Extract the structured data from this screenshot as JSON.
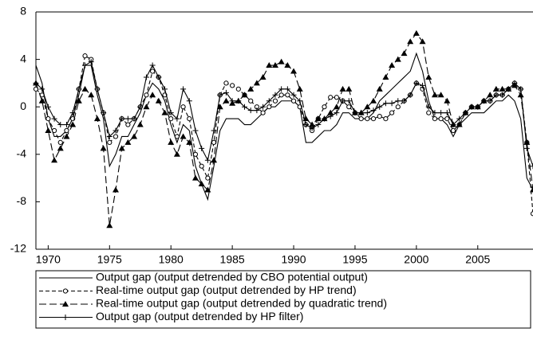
{
  "chart_data": {
    "type": "line",
    "x": [
      1969,
      1969.5,
      1970,
      1970.5,
      1971,
      1971.5,
      1972,
      1972.5,
      1973,
      1973.5,
      1974,
      1974.5,
      1975,
      1975.5,
      1976,
      1976.5,
      1977,
      1977.5,
      1978,
      1978.5,
      1979,
      1979.5,
      1980,
      1980.5,
      1981,
      1981.5,
      1982,
      1982.5,
      1983,
      1983.5,
      1984,
      1984.5,
      1985,
      1985.5,
      1986,
      1986.5,
      1987,
      1987.5,
      1988,
      1988.5,
      1989,
      1989.5,
      1990,
      1990.5,
      1991,
      1991.5,
      1992,
      1992.5,
      1993,
      1993.5,
      1994,
      1994.5,
      1995,
      1995.5,
      1996,
      1996.5,
      1997,
      1997.5,
      1998,
      1998.5,
      1999,
      1999.5,
      2000,
      2000.5,
      2001,
      2001.5,
      2002,
      2002.5,
      2003,
      2003.5,
      2004,
      2004.5,
      2005,
      2005.5,
      2006,
      2006.5,
      2007,
      2007.5,
      2008,
      2008.5,
      2009,
      2009.5
    ],
    "series": [
      {
        "name": "Output gap (output detrended by CBO potential output)",
        "color": "#000000",
        "line_style": "solid",
        "marker": "none",
        "values": [
          3.5,
          2,
          -1,
          -2.5,
          -2.5,
          -2,
          -1,
          1,
          3.5,
          3.5,
          1,
          -1,
          -5,
          -4,
          -2.5,
          -2.5,
          -1.5,
          -0.5,
          1,
          2,
          1.5,
          0.5,
          -1.5,
          -3,
          -1.5,
          -2,
          -5,
          -6.5,
          -7.8,
          -5,
          -2,
          -1,
          -1,
          -1,
          -1.5,
          -1.5,
          -1,
          -0.5,
          0,
          0,
          0.5,
          0.5,
          0.5,
          0,
          -3,
          -3,
          -2.5,
          -2,
          -2,
          -1.5,
          -0.5,
          -0.5,
          -1,
          -1,
          -1,
          -0.5,
          0.5,
          1,
          1.5,
          2,
          2.5,
          3,
          4.5,
          3,
          0.5,
          -1,
          -1,
          -1.5,
          -2.5,
          -1.5,
          -1,
          -0.5,
          -0.5,
          -0.5,
          0,
          0.5,
          0.5,
          1,
          0.5,
          -1,
          -6,
          -7
        ]
      },
      {
        "name": "Real-time output gap (output detrended by HP trend)",
        "color": "#000000",
        "line_style": "dashed",
        "marker": "circle",
        "values": [
          1.5,
          1,
          -1,
          -2,
          -3,
          -2,
          -1,
          1.5,
          4.3,
          4,
          1.5,
          -0.5,
          -3,
          -2.5,
          -1,
          -1.5,
          -1,
          0,
          1,
          3,
          2.5,
          1,
          -1,
          -2.5,
          0,
          -1,
          -4,
          -5,
          -6,
          -3,
          1,
          2,
          1.8,
          1.5,
          1,
          0.5,
          0,
          -0.5,
          0,
          0.5,
          1,
          1,
          0.5,
          0,
          -1.5,
          -2,
          -1,
          0,
          0.8,
          0.8,
          0.5,
          0,
          -0.5,
          -1,
          -1,
          -1,
          -0.8,
          -1,
          -0.5,
          0,
          0.5,
          1,
          2,
          1.5,
          -0.5,
          -1,
          -1,
          -1,
          -2,
          -1.5,
          -0.5,
          0,
          0,
          0.5,
          0.5,
          1,
          1,
          1.5,
          2,
          1.5,
          -3,
          -9
        ]
      },
      {
        "name": "Real-time output gap (output detrended by quadratic trend)",
        "color": "#000000",
        "line_style": "longdash",
        "marker": "triangle",
        "values": [
          2,
          0.5,
          -2,
          -4.5,
          -3.5,
          -2.5,
          -1.5,
          0.5,
          1.5,
          1,
          -1,
          -3.5,
          -10,
          -7,
          -3.5,
          -3,
          -2.5,
          -1.5,
          0,
          1,
          0.5,
          -0.5,
          -3,
          -4,
          -2.5,
          -3,
          -6,
          -6.5,
          -7,
          -4.5,
          0,
          0.5,
          0.3,
          0.5,
          1,
          1.5,
          2,
          2.5,
          3.5,
          3.5,
          3.8,
          3.5,
          3,
          1.5,
          -1,
          -1.5,
          -1,
          -1,
          -0.5,
          0,
          1.5,
          1.5,
          -0.5,
          -0.5,
          0,
          0.5,
          1.5,
          2.5,
          3.5,
          4,
          4.5,
          5.5,
          6.2,
          5.5,
          2.5,
          1,
          1,
          0.5,
          -1.5,
          -1.5,
          -0.5,
          0,
          0,
          0.5,
          1,
          1.5,
          1.5,
          1.5,
          1.8,
          1,
          -3,
          -7
        ]
      },
      {
        "name": "Output gap (output detrended by HP filter)",
        "color": "#000000",
        "line_style": "solid",
        "marker": "plus",
        "values": [
          2,
          1.5,
          0,
          -1,
          -1.5,
          -1.5,
          -0.5,
          1.5,
          3.5,
          3.8,
          1.5,
          -0.5,
          -2.5,
          -2,
          -1,
          -1,
          -1,
          0,
          2.5,
          3.5,
          2.5,
          1.5,
          -0.5,
          -1,
          1.5,
          0.5,
          -2,
          -3.5,
          -4.5,
          -2,
          1,
          1.2,
          0.5,
          0.5,
          0,
          -0.3,
          -0.3,
          0,
          0.5,
          1,
          1.5,
          1.5,
          1,
          0.5,
          -1.5,
          -1.8,
          -1.5,
          -1,
          -0.8,
          -0.5,
          0.5,
          0.5,
          -0.5,
          -0.5,
          -0.5,
          -0.3,
          0,
          0.3,
          0.3,
          0.5,
          0.5,
          1,
          2,
          1.8,
          0,
          -0.5,
          -0.5,
          -0.5,
          -1.5,
          -1,
          -0.5,
          0,
          0,
          0.5,
          0.5,
          1,
          1,
          1.5,
          2,
          1.5,
          -3.5,
          -5
        ]
      }
    ],
    "xlim": [
      1969,
      2009.5
    ],
    "xticks": [
      1970,
      1975,
      1980,
      1985,
      1990,
      1995,
      2000,
      2005
    ],
    "ylim": [
      -12,
      8
    ],
    "yticks": [
      -12,
      -8,
      -4,
      0,
      4,
      8
    ],
    "grid": false,
    "legend": "bottom"
  }
}
